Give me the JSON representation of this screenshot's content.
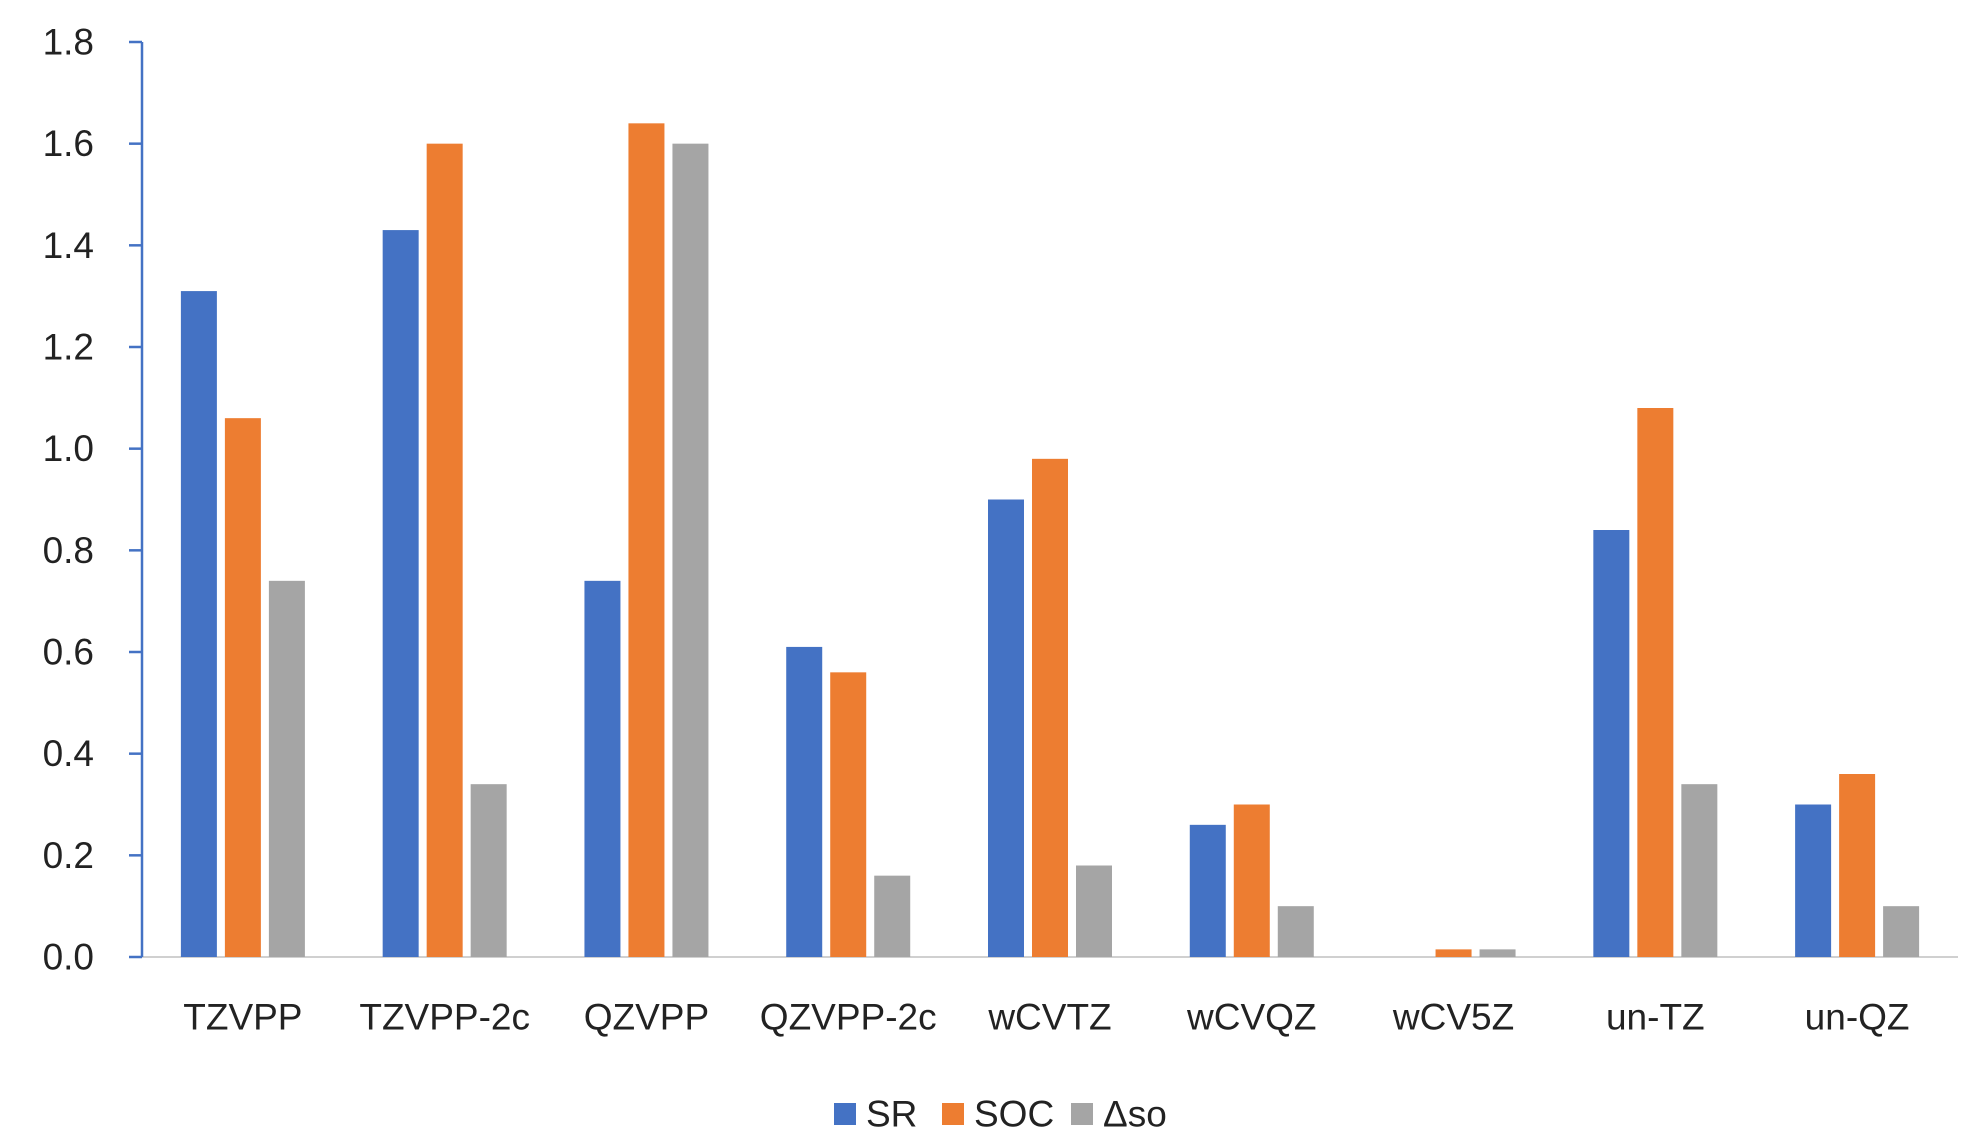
{
  "chart_data": {
    "type": "bar",
    "title": "",
    "xlabel": "",
    "ylabel": "",
    "ylim": [
      0,
      1.8
    ],
    "yticks": [
      "0.0",
      "0.2",
      "0.4",
      "0.6",
      "0.8",
      "1.0",
      "1.2",
      "1.4",
      "1.6",
      "1.8"
    ],
    "grid": false,
    "legend_position": "bottom-center",
    "categories": [
      "TZVPP",
      "TZVPP-2c",
      "QZVPP",
      "QZVPP-2c",
      "wCVTZ",
      "wCVQZ",
      "wCV5Z",
      "un-TZ",
      "un-QZ"
    ],
    "series": [
      {
        "name": "SR",
        "color": "#4472C4",
        "values": [
          1.31,
          1.43,
          0.74,
          0.61,
          0.9,
          0.26,
          0.0,
          0.84,
          0.3
        ]
      },
      {
        "name": "SOC",
        "color": "#ED7D31",
        "values": [
          1.06,
          1.6,
          1.64,
          0.56,
          0.98,
          0.3,
          0.015,
          1.08,
          0.36
        ]
      },
      {
        "name": "Δso",
        "color": "#A5A5A5",
        "values": [
          0.74,
          0.34,
          1.6,
          0.16,
          0.18,
          0.1,
          0.015,
          0.34,
          0.1
        ]
      }
    ],
    "axis_color": "#4472C4",
    "baseline_color": "#D0D0D0"
  }
}
